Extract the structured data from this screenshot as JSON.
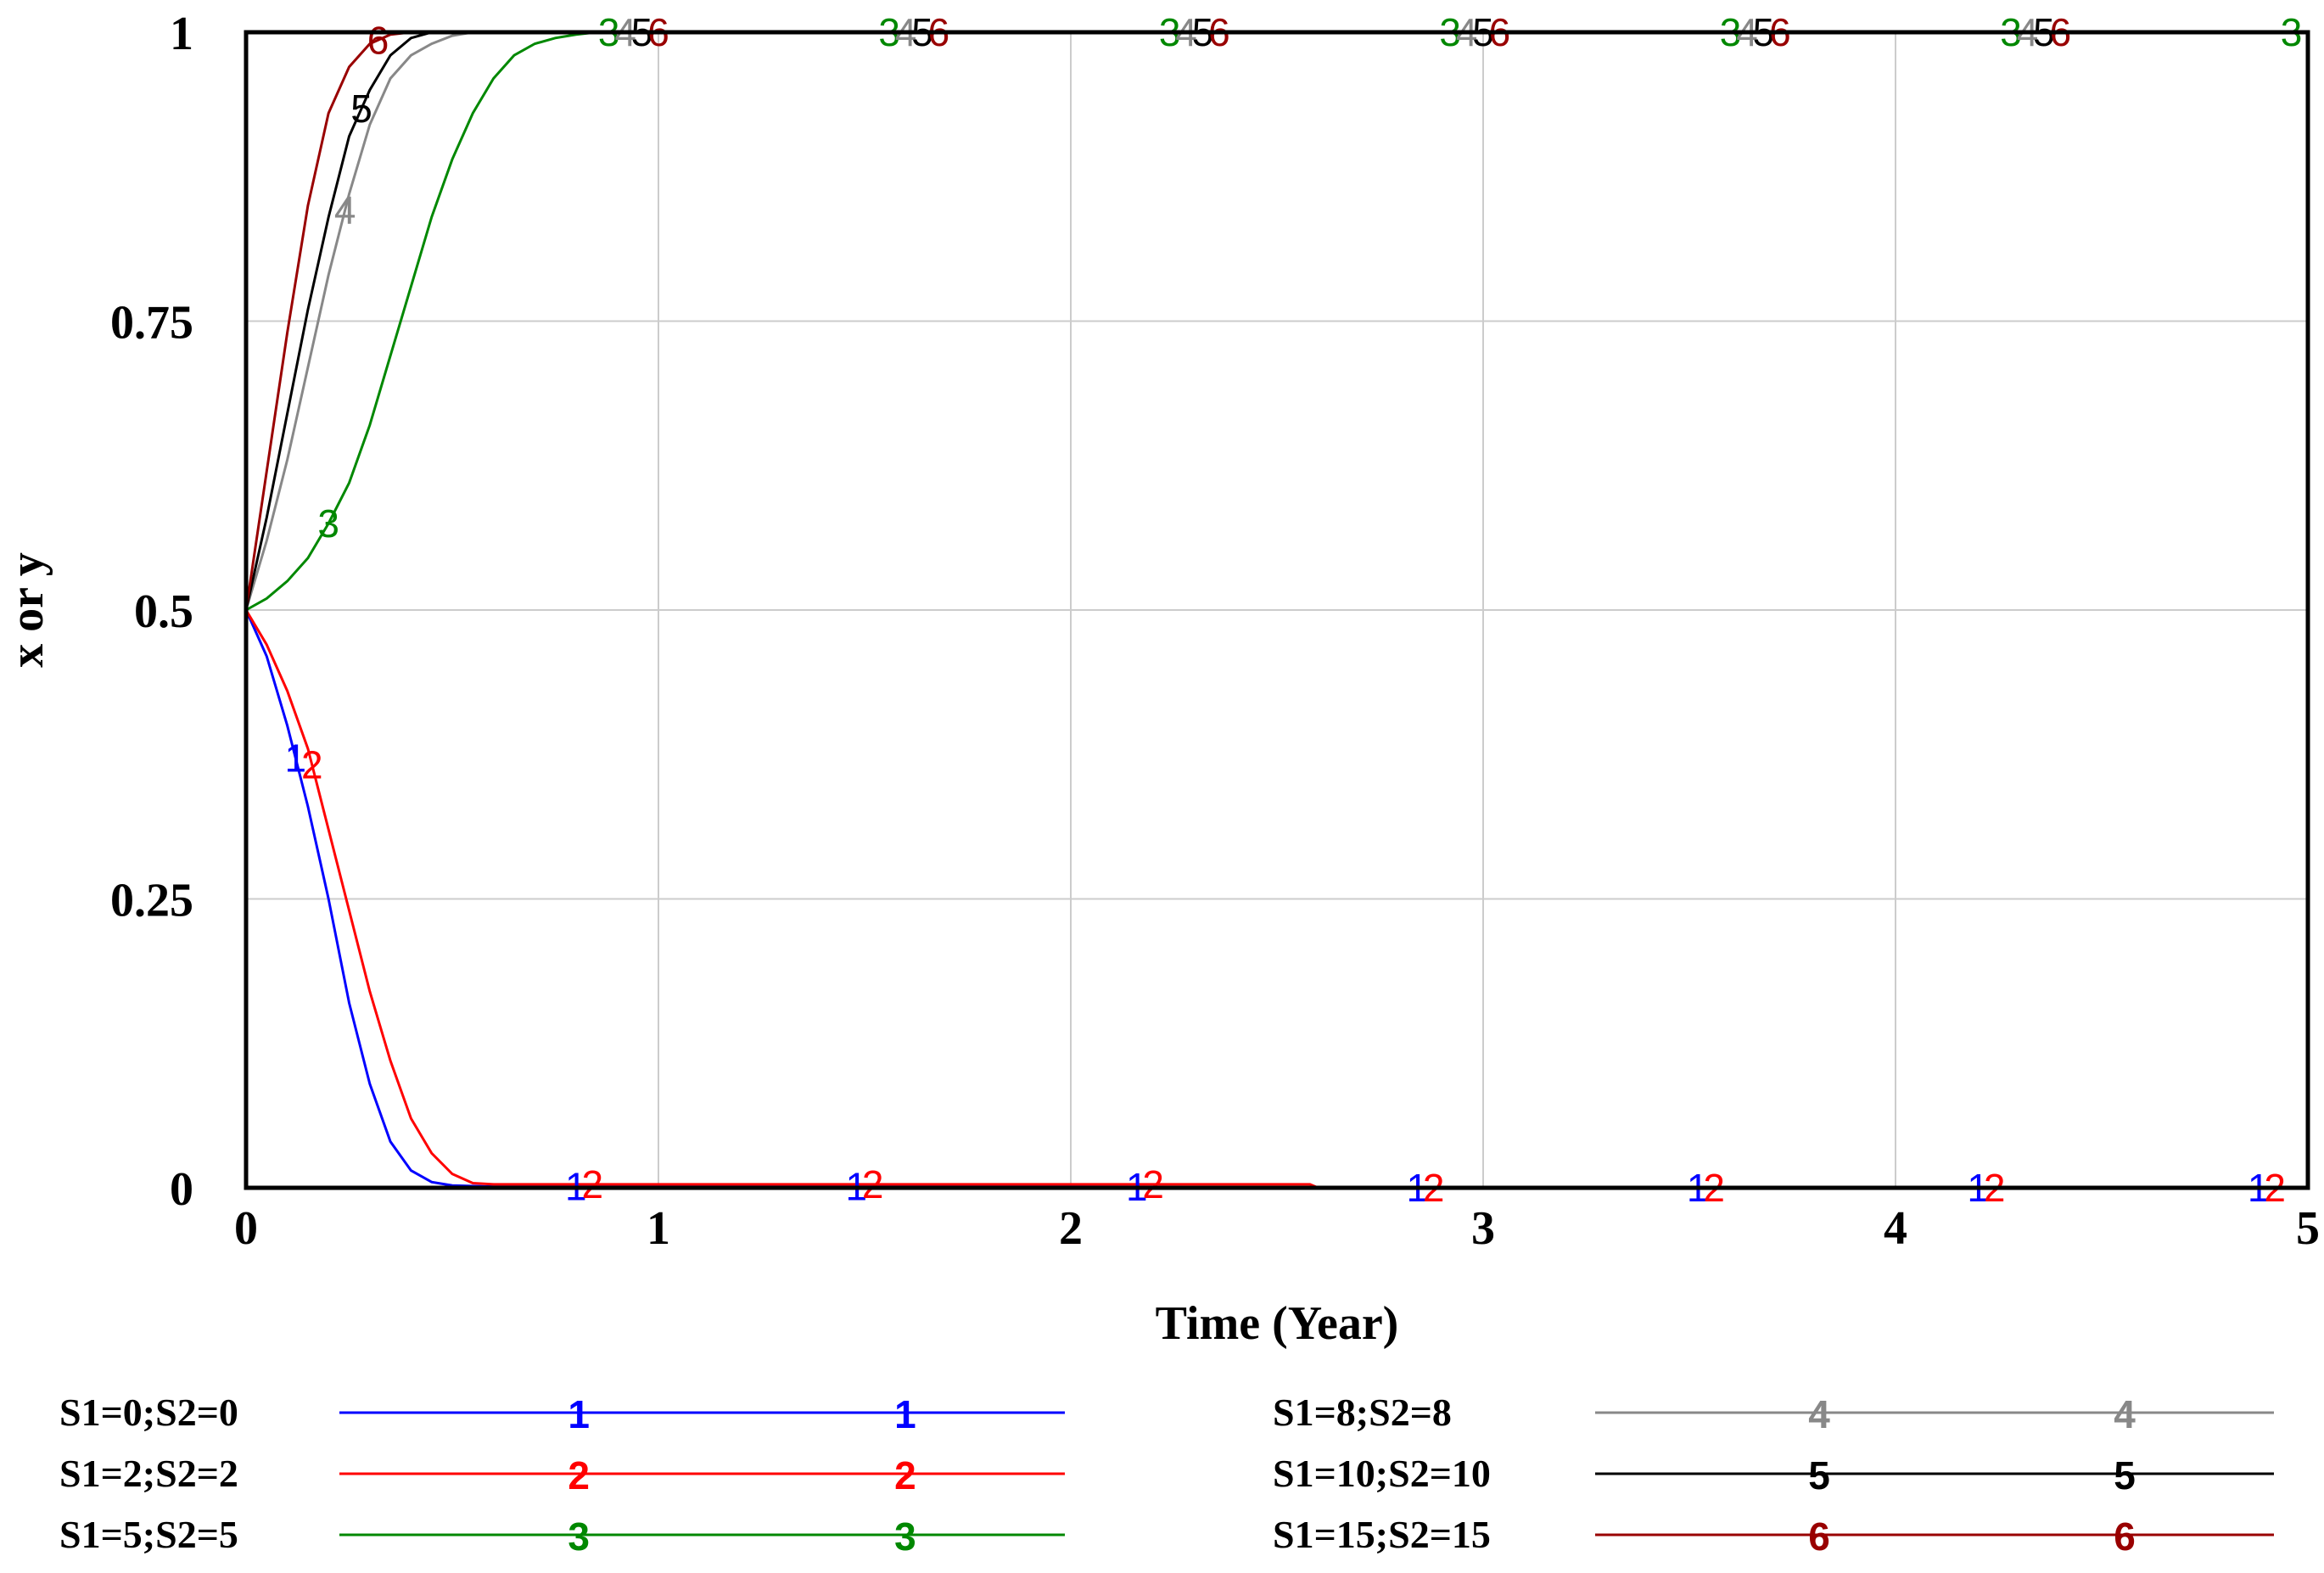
{
  "chart_data": {
    "type": "line",
    "title": "",
    "xlabel": "Time (Year)",
    "ylabel": "x or y",
    "xlim": [
      0,
      5
    ],
    "ylim": [
      0,
      1
    ],
    "x_ticks": [
      "0",
      "1",
      "2",
      "3",
      "4",
      "5"
    ],
    "y_ticks": [
      "0",
      "0.25",
      "0.5",
      "0.75",
      "1"
    ],
    "grid": true,
    "legend_position": "bottom",
    "series": [
      {
        "name": "S1=0;S2=0",
        "marker": "1",
        "color": "#0000ff",
        "x": [
          0,
          0.05,
          0.1,
          0.15,
          0.2,
          0.25,
          0.3,
          0.35,
          0.4,
          0.45,
          0.5,
          0.6,
          1,
          2,
          3,
          4,
          5
        ],
        "y": [
          0.5,
          0.46,
          0.4,
          0.33,
          0.25,
          0.16,
          0.09,
          0.04,
          0.015,
          0.005,
          0.002,
          0.001,
          0.001,
          0.001,
          0,
          0,
          0
        ]
      },
      {
        "name": "S1=2;S2=2",
        "marker": "2",
        "color": "#ff0000",
        "x": [
          0,
          0.05,
          0.1,
          0.15,
          0.2,
          0.25,
          0.3,
          0.35,
          0.4,
          0.45,
          0.5,
          0.55,
          0.6,
          1,
          2,
          2.58,
          2.6,
          3,
          4,
          5
        ],
        "y": [
          0.5,
          0.47,
          0.43,
          0.38,
          0.31,
          0.24,
          0.17,
          0.11,
          0.06,
          0.03,
          0.012,
          0.004,
          0.003,
          0.003,
          0.003,
          0.003,
          0,
          0,
          0,
          0
        ]
      },
      {
        "name": "S1=5;S2=5",
        "marker": "3",
        "color": "#008800",
        "x": [
          0,
          0.05,
          0.1,
          0.15,
          0.2,
          0.25,
          0.3,
          0.35,
          0.4,
          0.45,
          0.5,
          0.55,
          0.6,
          0.65,
          0.7,
          0.75,
          0.8,
          0.85,
          0.9,
          1,
          2,
          3,
          4,
          5
        ],
        "y": [
          0.5,
          0.51,
          0.525,
          0.545,
          0.575,
          0.61,
          0.66,
          0.72,
          0.78,
          0.84,
          0.89,
          0.93,
          0.96,
          0.98,
          0.99,
          0.995,
          0.998,
          1,
          1,
          1,
          1,
          1,
          1,
          1
        ]
      },
      {
        "name": "S1=8;S2=8",
        "marker": "4",
        "color": "#888888",
        "x": [
          0,
          0.05,
          0.1,
          0.15,
          0.2,
          0.25,
          0.3,
          0.35,
          0.4,
          0.45,
          0.5,
          0.55,
          1,
          2,
          3,
          4,
          4.6
        ],
        "y": [
          0.5,
          0.56,
          0.63,
          0.71,
          0.79,
          0.86,
          0.92,
          0.96,
          0.98,
          0.99,
          0.997,
          1,
          1,
          1,
          1,
          1,
          1
        ]
      },
      {
        "name": "S1=10;S2=10",
        "marker": "5",
        "color": "#000000",
        "x": [
          0,
          0.05,
          0.1,
          0.15,
          0.2,
          0.25,
          0.3,
          0.35,
          0.4,
          0.45,
          1,
          2,
          3,
          4,
          4.6
        ],
        "y": [
          0.5,
          0.58,
          0.67,
          0.76,
          0.84,
          0.91,
          0.95,
          0.98,
          0.995,
          1,
          1,
          1,
          1,
          1,
          1
        ]
      },
      {
        "name": "S1=15;S2=15",
        "marker": "6",
        "color": "#990000",
        "x": [
          0,
          0.05,
          0.1,
          0.15,
          0.2,
          0.25,
          0.3,
          0.35,
          0.4,
          1,
          2,
          3,
          4,
          4.6
        ],
        "y": [
          0.5,
          0.62,
          0.74,
          0.85,
          0.93,
          0.97,
          0.99,
          0.998,
          1,
          1,
          1,
          1,
          1,
          1
        ]
      }
    ]
  }
}
